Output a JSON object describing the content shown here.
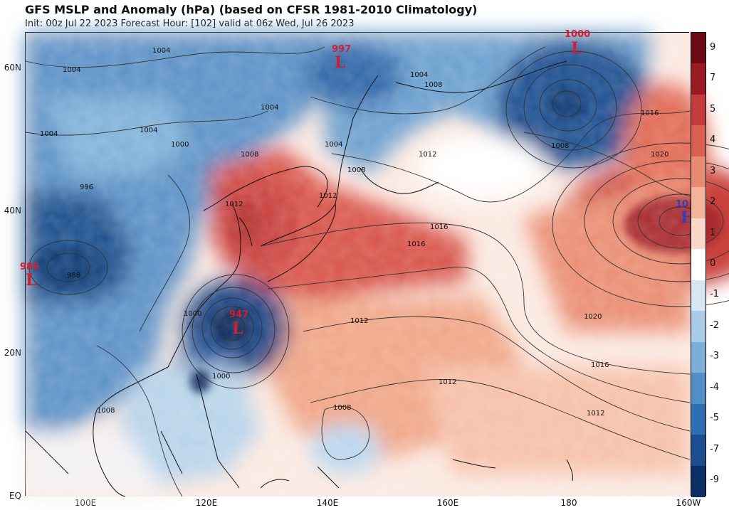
{
  "header": {
    "title": "GFS MSLP and Anomaly (hPa) (based on CFSR 1981-2010 Climatology)",
    "subtitle": "Init: 00z Jul 22 2023   Forecast Hour: [102]   valid at 06z Wed, Jul 26 2023"
  },
  "axes": {
    "lat_labels": [
      "60N",
      "40N",
      "20N",
      "EQ"
    ],
    "lon_labels": [
      "100E",
      "120E",
      "140E",
      "160E",
      "180",
      "160W"
    ]
  },
  "colorbar": {
    "labels": [
      "9",
      "7",
      "5",
      "4",
      "3",
      "2",
      "1",
      "0",
      "-1",
      "-2",
      "-3",
      "-4",
      "-5",
      "-7",
      "-9"
    ],
    "colors": [
      "#6b0a12",
      "#9c1a22",
      "#c53a3a",
      "#da5f4f",
      "#e88a70",
      "#f2b398",
      "#f9d8c8",
      "#ffffff",
      "#d6e6f3",
      "#a9cbe6",
      "#7cafd7",
      "#4f8fc6",
      "#2d6fb0",
      "#1a4e8f",
      "#0b2f63"
    ]
  },
  "centers": {
    "lows": [
      {
        "value": "997",
        "letter": "L"
      },
      {
        "value": "1000",
        "letter": "L"
      },
      {
        "value": "986",
        "letter": "L"
      },
      {
        "value": "947",
        "letter": "L"
      }
    ],
    "highs": [
      {
        "value": "10",
        "letter": "H"
      }
    ]
  },
  "isobar_labels": [
    "1004",
    "1004",
    "1004",
    "1004",
    "1004",
    "1004",
    "1004",
    "1008",
    "1008",
    "1008",
    "1008",
    "1008",
    "1008",
    "1012",
    "1012",
    "1012",
    "1012",
    "1012",
    "1016",
    "1016",
    "1016",
    "1016",
    "1020",
    "1020",
    "1000",
    "1000",
    "1000",
    "996",
    "988",
    "1012"
  ],
  "colors": {
    "low": "#d02030",
    "high": "#3040c0"
  }
}
